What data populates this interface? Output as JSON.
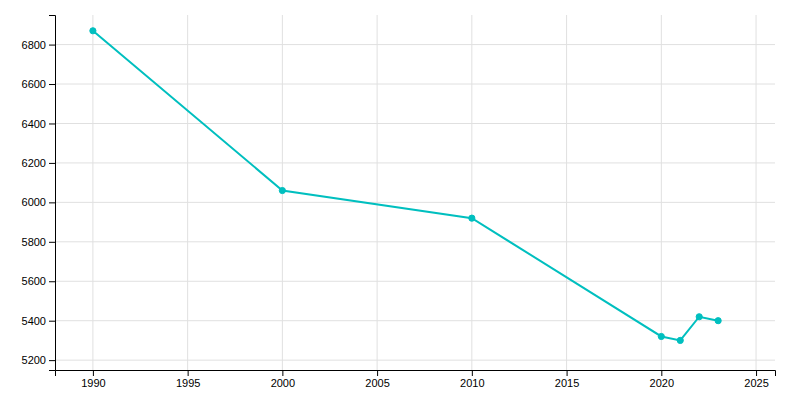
{
  "chart_data": {
    "type": "line",
    "x": [
      1990,
      2000,
      2010,
      2020,
      2021,
      2022,
      2023
    ],
    "values": [
      6870,
      6060,
      5920,
      5320,
      5300,
      5420,
      5400
    ],
    "color": "#00BFBF",
    "marker": "circle",
    "line_style": "solid",
    "xlim": [
      1988,
      2026
    ],
    "ylim": [
      5150,
      6950
    ],
    "xticks": [
      1990,
      1995,
      2000,
      2005,
      2010,
      2015,
      2020,
      2025
    ],
    "yticks": [
      5200,
      5400,
      5600,
      5800,
      6000,
      6200,
      6400,
      6600,
      6800
    ],
    "grid": true
  }
}
